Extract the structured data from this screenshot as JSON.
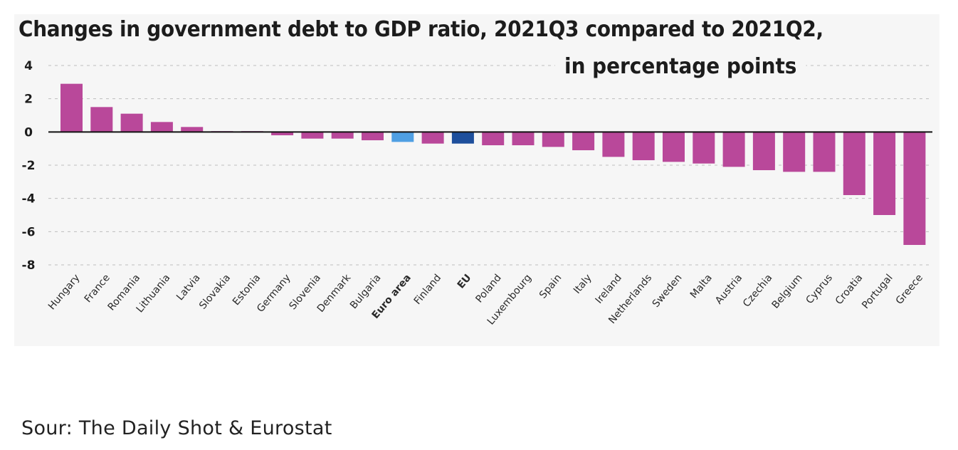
{
  "chart_data": {
    "type": "bar",
    "title": "Changes in government debt to GDP ratio, 2021Q3 compared to 2021Q2,",
    "subtitle": "in percentage points",
    "categories": [
      "Hungary",
      "France",
      "Romania",
      "Lithuania",
      "Latvia",
      "Slovakia",
      "Estonia",
      "Germany",
      "Slovenia",
      "Denmark",
      "Bulgaria",
      "Euro area",
      "Finland",
      "EU",
      "Poland",
      "Luxembourg",
      "Spain",
      "Italy",
      "Ireland",
      "Netherlands",
      "Sweden",
      "Malta",
      "Austria",
      "Czechia",
      "Belgium",
      "Cyprus",
      "Croatia",
      "Portugal",
      "Greece"
    ],
    "values": [
      2.9,
      1.5,
      1.1,
      0.6,
      0.3,
      0.05,
      0.05,
      -0.2,
      -0.4,
      -0.4,
      -0.5,
      -0.6,
      -0.7,
      -0.7,
      -0.8,
      -0.8,
      -0.9,
      -1.1,
      -1.5,
      -1.7,
      -1.8,
      -1.9,
      -2.1,
      -2.3,
      -2.4,
      -2.4,
      -3.8,
      -5.0,
      -6.8
    ],
    "highlight_categories": [
      "Euro area",
      "EU"
    ],
    "bold_categories": [
      "Euro area",
      "EU"
    ],
    "ylim": [
      -8,
      4
    ],
    "yticks": [
      4,
      2,
      0,
      -2,
      -4,
      -6,
      -8
    ],
    "grid": true,
    "xlabel": "",
    "ylabel": "",
    "colors": {
      "default": "#b9489a",
      "euro_area": "#4f9fe3",
      "eu": "#1e4f9c",
      "zero_line": "#111111",
      "grid": "#bdbdbd"
    }
  },
  "source": "Sour: The Daily Shot & Eurostat"
}
